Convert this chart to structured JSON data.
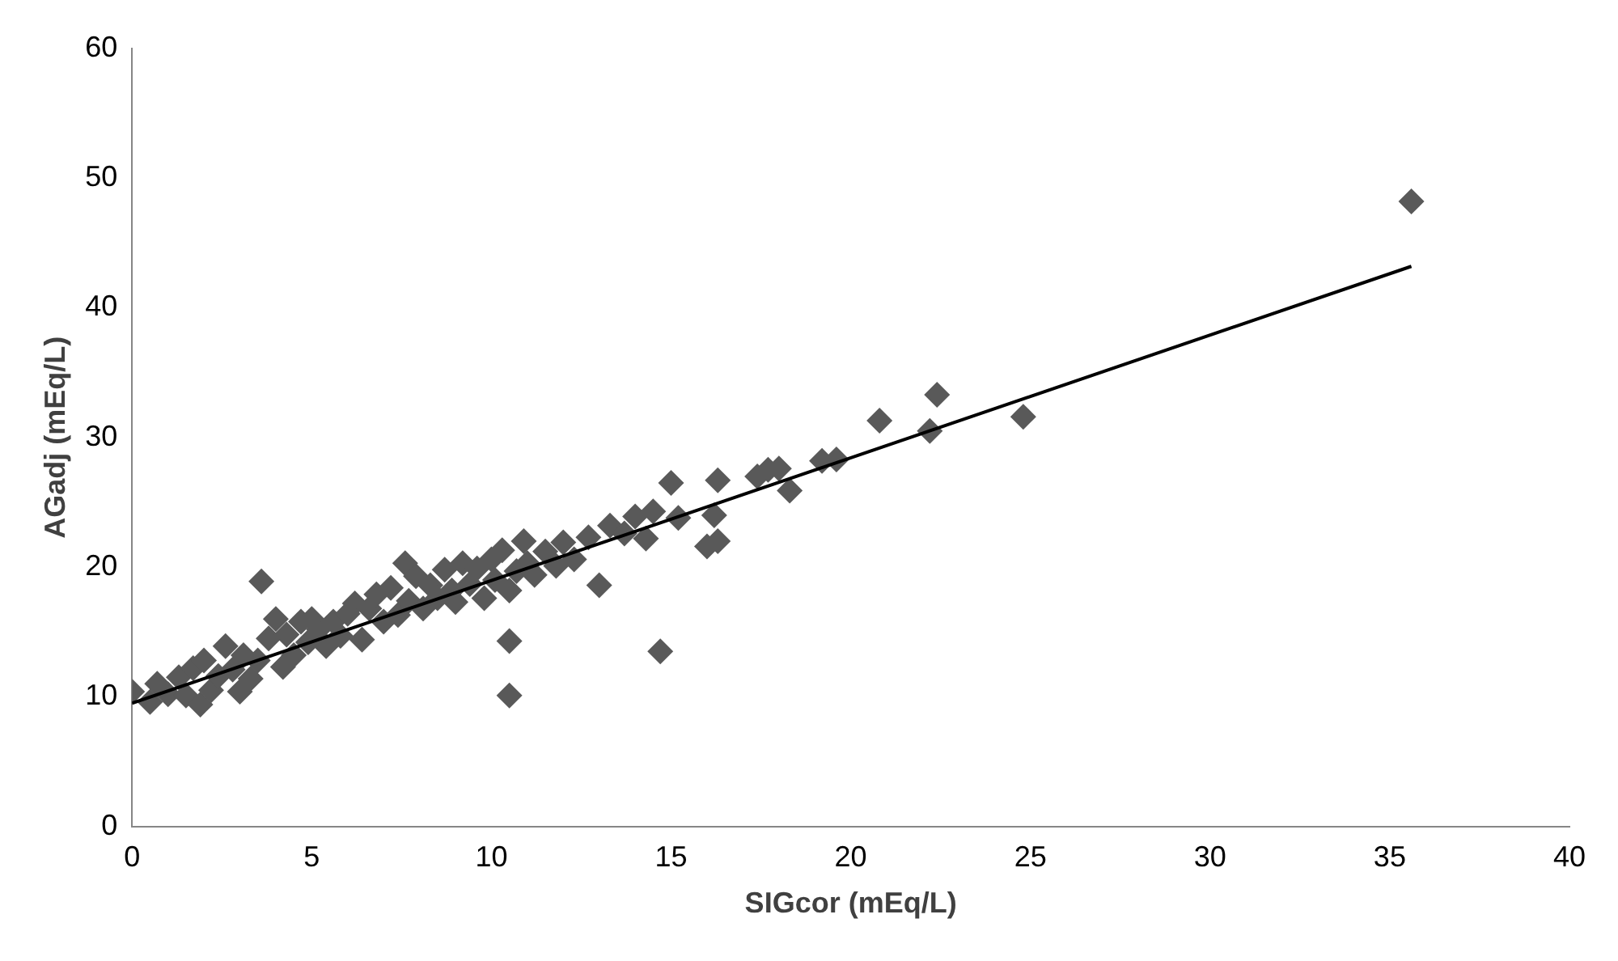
{
  "chart_data": {
    "type": "scatter",
    "xlabel": "SIGcor (mEq/L)",
    "ylabel": "AGadj (mEq/L)",
    "xlim": [
      0,
      40
    ],
    "xticks": [
      0,
      5,
      10,
      15,
      20,
      25,
      30,
      35,
      40
    ],
    "ylim": [
      0,
      60
    ],
    "yticks": [
      0,
      10,
      20,
      30,
      40,
      50,
      60
    ],
    "grid": false,
    "legend": false,
    "marker": "diamond",
    "series": [
      {
        "color": "#595959",
        "x": [
          0,
          0.5,
          0.7,
          1,
          1.3,
          1.5,
          1.7,
          1.9,
          2,
          2.2,
          2.4,
          2.6,
          2.8,
          3,
          3.1,
          3.3,
          3.5,
          3.6,
          3.8,
          4,
          4.2,
          4.3,
          4.5,
          4.7,
          4.9,
          5,
          5.2,
          5.4,
          5.6,
          5.8,
          6,
          6.2,
          6.4,
          6.6,
          6.8,
          7,
          7.2,
          7.4,
          7.6,
          7.7,
          7.9,
          8.1,
          8.3,
          8.5,
          8.7,
          8.9,
          9,
          9.2,
          9.4,
          9.6,
          9.8,
          10,
          10.1,
          10.3,
          10.5,
          10.5,
          10.5,
          10.7,
          10.9,
          11,
          11.2,
          11.5,
          11.8,
          12,
          12.3,
          12.7,
          13,
          13.3,
          13.7,
          14,
          14.3,
          14.5,
          14.7,
          15,
          15.2,
          16,
          16.2,
          16.3,
          16.3,
          17.4,
          17.7,
          18,
          18.3,
          19.2,
          19.6,
          20.8,
          22.2,
          22.4,
          24.8,
          35.6
        ],
        "values": [
          10.4,
          9.6,
          11,
          10.2,
          11.5,
          10.1,
          12.2,
          9.4,
          12.8,
          10.5,
          11.6,
          13.9,
          12.1,
          10.4,
          13.2,
          11.4,
          12.8,
          18.9,
          14.5,
          16,
          12.3,
          14.8,
          13.2,
          15.8,
          14.2,
          16,
          15.2,
          13.9,
          15.8,
          14.7,
          16.4,
          17.2,
          14.4,
          16.8,
          17.9,
          15.8,
          18.4,
          16.3,
          20.3,
          17.4,
          19.3,
          16.8,
          18.6,
          17.6,
          19.8,
          18.2,
          17.3,
          20.3,
          18.7,
          19.9,
          17.6,
          20.6,
          19,
          21.3,
          14.3,
          10.1,
          18.2,
          19.7,
          22,
          20.3,
          19.4,
          21.2,
          20.1,
          21.9,
          20.6,
          22.3,
          18.6,
          23.2,
          22.6,
          23.9,
          22.2,
          24.3,
          13.5,
          26.5,
          23.8,
          21.6,
          24,
          26.7,
          22,
          27,
          27.5,
          27.6,
          25.9,
          28.2,
          28.3,
          31.3,
          30.5,
          33.3,
          31.6,
          48.2
        ]
      },
      {
        "type": "line",
        "color": "#000000",
        "marker": "none",
        "x": [
          0,
          35.6
        ],
        "values": [
          9.5,
          43.2
        ]
      }
    ]
  }
}
